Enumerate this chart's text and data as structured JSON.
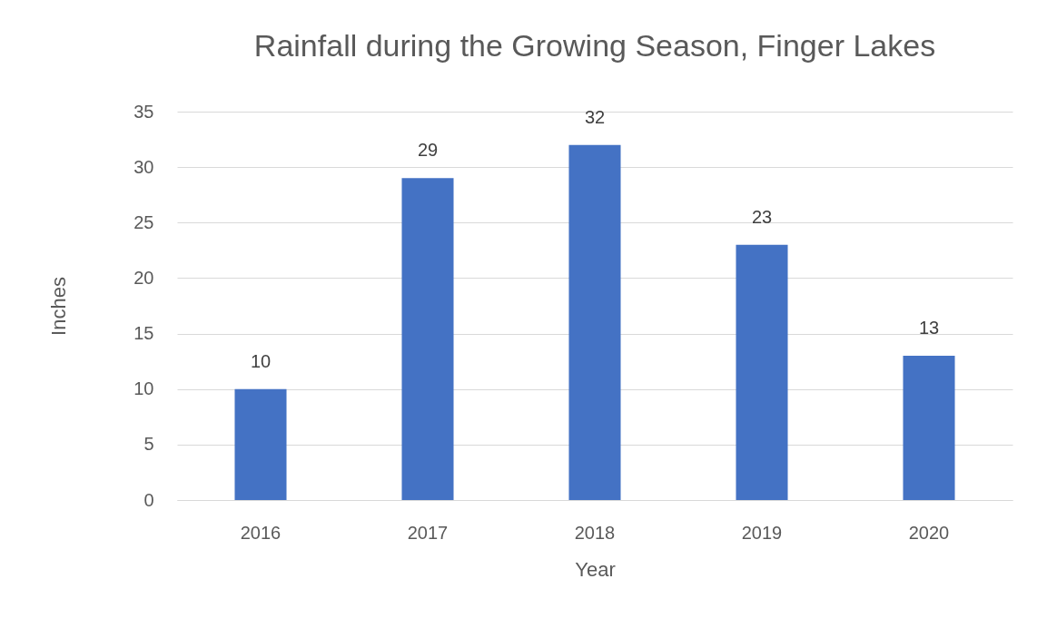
{
  "chart_data": {
    "type": "bar",
    "title": "Rainfall during the Growing Season, Finger Lakes",
    "xlabel": "Year",
    "ylabel": "Inches",
    "categories": [
      "2016",
      "2017",
      "2018",
      "2019",
      "2020"
    ],
    "values": [
      10,
      29,
      32,
      23,
      13
    ],
    "color": "#4472c4",
    "ylim": [
      0,
      35
    ],
    "yticks": [
      0,
      5,
      10,
      15,
      20,
      25,
      30,
      35
    ],
    "grid": "y",
    "data_labels": true
  }
}
